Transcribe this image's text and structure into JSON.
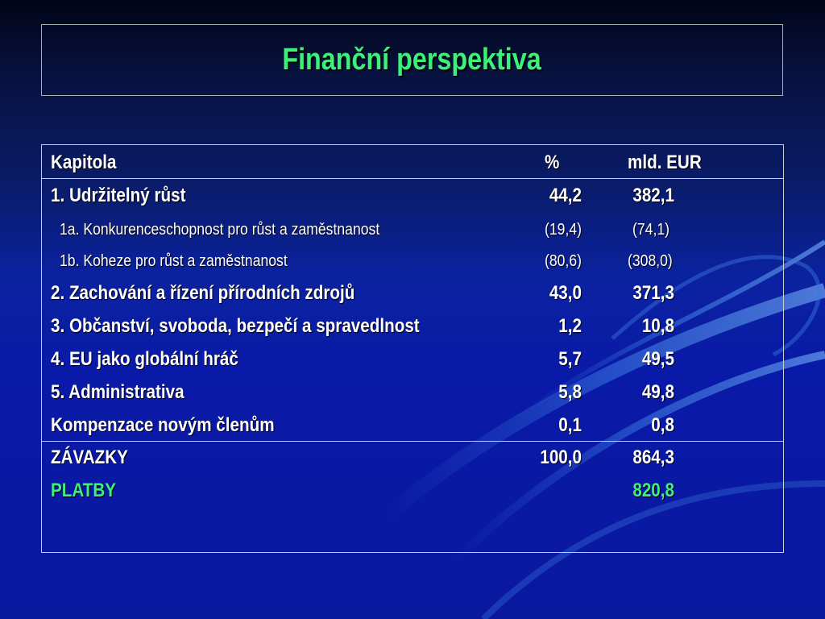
{
  "slide": {
    "title": "Finanční perspektiva"
  },
  "table": {
    "header": {
      "name": "Kapitola",
      "pct": "%",
      "eur": "mld. EUR"
    },
    "rows": [
      {
        "name": "1. Udržitelný růst",
        "pct": "44,2",
        "eur": "382,1"
      },
      {
        "name": "1a. Konkurenceschopnost pro růst a zaměstnanost",
        "pct": "(19,4)",
        "eur": "(74,1)"
      },
      {
        "name": "1b. Koheze pro růst a zaměstnanost",
        "pct": "(80,6)",
        "eur": "(308,0)"
      },
      {
        "name": "2. Zachování a řízení přírodních zdrojů",
        "pct": "43,0",
        "eur": "371,3"
      },
      {
        "name": "3. Občanství, svoboda, bezpečí a spravedlnost",
        "pct": "1,2",
        "eur": "10,8"
      },
      {
        "name": "4. EU jako globální hráč",
        "pct": "5,7",
        "eur": "49,5"
      },
      {
        "name": "5. Administrativa",
        "pct": "5,8",
        "eur": "49,8"
      },
      {
        "name": "Kompenzace novým členům",
        "pct": "0,1",
        "eur": "0,8"
      }
    ],
    "totals": [
      {
        "name": "ZÁVAZKY",
        "pct": "100,0",
        "eur": "864,3"
      },
      {
        "name": "PLATBY",
        "pct": "",
        "eur": "820,8"
      }
    ]
  },
  "colors": {
    "title_green": "#3df07a",
    "background_blue": "#0a1aa8",
    "text_white": "#ffffff"
  }
}
